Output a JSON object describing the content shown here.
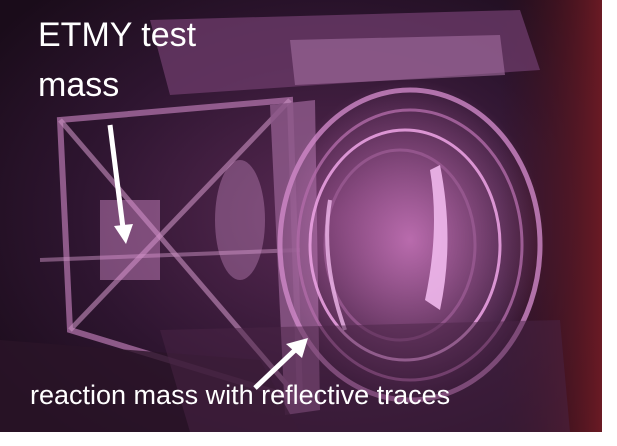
{
  "annotations": {
    "test_mass": [
      "ETMY test",
      "mass"
    ],
    "reaction_mass": "reaction mass with reflective traces"
  }
}
